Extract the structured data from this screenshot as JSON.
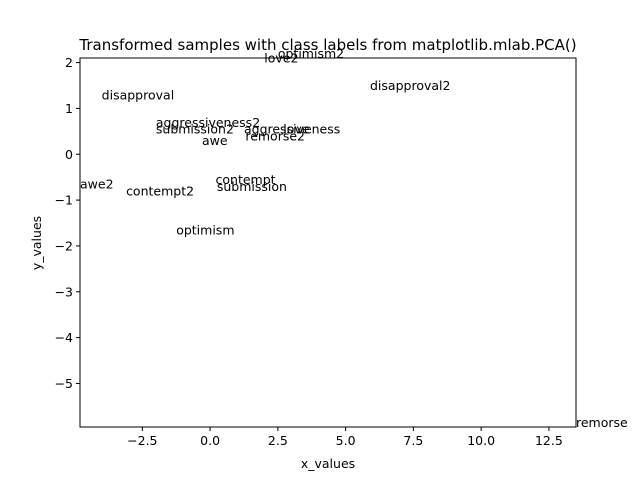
{
  "chart_data": {
    "type": "scatter",
    "title": "Transformed samples with class labels from matplotlib.mlab.PCA()",
    "xlabel": "x_values",
    "ylabel": "y_values",
    "xlim": [
      -4.8,
      13.5
    ],
    "ylim": [
      -5.95,
      2.1
    ],
    "x_ticks": [
      {
        "value": -2.5,
        "label": "−2.5"
      },
      {
        "value": 0.0,
        "label": "0.0"
      },
      {
        "value": 2.5,
        "label": "2.5"
      },
      {
        "value": 5.0,
        "label": "5.0"
      },
      {
        "value": 7.5,
        "label": "7.5"
      },
      {
        "value": 10.0,
        "label": "10.0"
      },
      {
        "value": 12.5,
        "label": "12.5"
      }
    ],
    "y_ticks": [
      {
        "value": 2,
        "label": "2"
      },
      {
        "value": 1,
        "label": "1"
      },
      {
        "value": 0,
        "label": "0"
      },
      {
        "value": -1,
        "label": "−1"
      },
      {
        "value": -2,
        "label": "−2"
      },
      {
        "value": -3,
        "label": "−3"
      },
      {
        "value": -4,
        "label": "−4"
      },
      {
        "value": -5,
        "label": "−5"
      }
    ],
    "grid": false,
    "marker": "text",
    "points": [
      {
        "label": "optimism2",
        "x": 2.5,
        "y": 2.1
      },
      {
        "label": "love2",
        "x": 2.0,
        "y": 2.0
      },
      {
        "label": "disapproval2",
        "x": 5.9,
        "y": 1.4
      },
      {
        "label": "disapproval",
        "x": -4.0,
        "y": 1.2
      },
      {
        "label": "aggressiveness2",
        "x": -2.0,
        "y": 0.6
      },
      {
        "label": "submission2",
        "x": -2.0,
        "y": 0.45
      },
      {
        "label": "aggressiveness",
        "x": 1.25,
        "y": 0.45
      },
      {
        "label": "love",
        "x": 2.7,
        "y": 0.45
      },
      {
        "label": "remorse2",
        "x": 1.3,
        "y": 0.3
      },
      {
        "label": "awe",
        "x": -0.3,
        "y": 0.2
      },
      {
        "label": "contempt",
        "x": 0.2,
        "y": -0.65
      },
      {
        "label": "submission",
        "x": 0.25,
        "y": -0.8
      },
      {
        "label": "awe2",
        "x": -4.8,
        "y": -0.75
      },
      {
        "label": "contempt2",
        "x": -3.1,
        "y": -0.9
      },
      {
        "label": "optimism",
        "x": -1.25,
        "y": -1.75
      },
      {
        "label": "remorse",
        "x": 13.5,
        "y": -5.95
      }
    ]
  }
}
